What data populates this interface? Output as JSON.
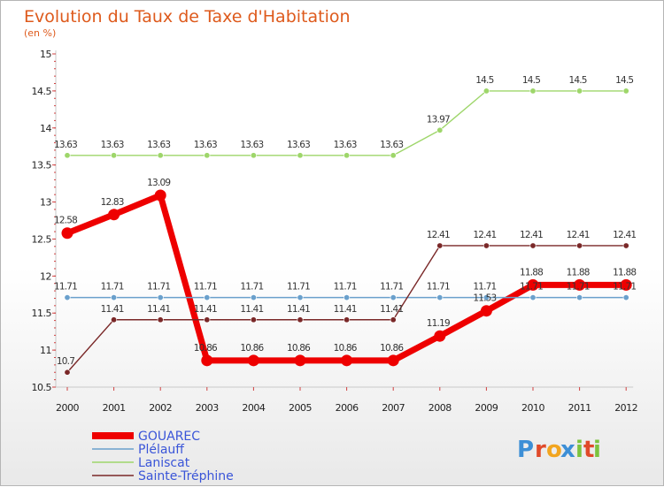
{
  "chart_data": {
    "type": "line",
    "title": "Evolution du Taux de Taxe d'Habitation",
    "subtitle": "(en %)",
    "xlabel": "",
    "ylabel": "",
    "x": [
      "2000",
      "2001",
      "2002",
      "2003",
      "2004",
      "2005",
      "2006",
      "2007",
      "2008",
      "2009",
      "2010",
      "2011",
      "2012"
    ],
    "ylim": [
      10.5,
      15
    ],
    "yticks": [
      "10.5",
      "11",
      "11.5",
      "12",
      "12.5",
      "13",
      "13.5",
      "14",
      "14.5",
      "15"
    ],
    "legend_position": "bottom-left",
    "series": [
      {
        "name": "GOUAREC",
        "color": "#ee0000",
        "values": [
          12.58,
          12.83,
          13.09,
          10.86,
          10.86,
          10.86,
          10.86,
          10.86,
          11.19,
          11.53,
          11.88,
          11.88,
          11.88
        ],
        "labels": [
          "12.58",
          "12.83",
          "13.09",
          "10.86",
          "10.86",
          "10.86",
          "10.86",
          "10.86",
          "11.19",
          "11.53",
          "11.88",
          "11.88",
          "11.88"
        ]
      },
      {
        "name": "Plélauff",
        "color": "#6aa0cc",
        "values": [
          11.71,
          11.71,
          11.71,
          11.71,
          11.71,
          11.71,
          11.71,
          11.71,
          11.71,
          11.71,
          11.71,
          11.71,
          11.71
        ],
        "labels": [
          "11.71",
          "11.71",
          "11.71",
          "11.71",
          "11.71",
          "11.71",
          "11.71",
          "11.71",
          "11.71",
          "11.71",
          "11.71",
          "11.71",
          "11.71"
        ]
      },
      {
        "name": "Laniscat",
        "color": "#9ed66a",
        "values": [
          13.63,
          13.63,
          13.63,
          13.63,
          13.63,
          13.63,
          13.63,
          13.63,
          13.97,
          14.5,
          14.5,
          14.5,
          14.5
        ],
        "labels": [
          "13.63",
          "13.63",
          "13.63",
          "13.63",
          "13.63",
          "13.63",
          "13.63",
          "13.63",
          "13.97",
          "14.5",
          "14.5",
          "14.5",
          "14.5"
        ]
      },
      {
        "name": "Sainte-Tréphine",
        "color": "#7a2828",
        "values": [
          10.7,
          11.41,
          11.41,
          11.41,
          11.41,
          11.41,
          11.41,
          11.41,
          12.41,
          12.41,
          12.41,
          12.41,
          12.41
        ],
        "labels": [
          "10.7",
          "11.41",
          "11.41",
          "11.41",
          "11.41",
          "11.41",
          "11.41",
          "11.41",
          "12.41",
          "12.41",
          "12.41",
          "12.41",
          "12.41"
        ]
      }
    ]
  },
  "logo": {
    "letters": [
      "P",
      "r",
      "o",
      "x",
      "i",
      "t",
      "i"
    ],
    "colors": [
      "#3d8fd6",
      "#e04a2a",
      "#f2a51f",
      "#3d8fd6",
      "#7cc33e",
      "#e04a2a",
      "#7cc33e"
    ]
  }
}
